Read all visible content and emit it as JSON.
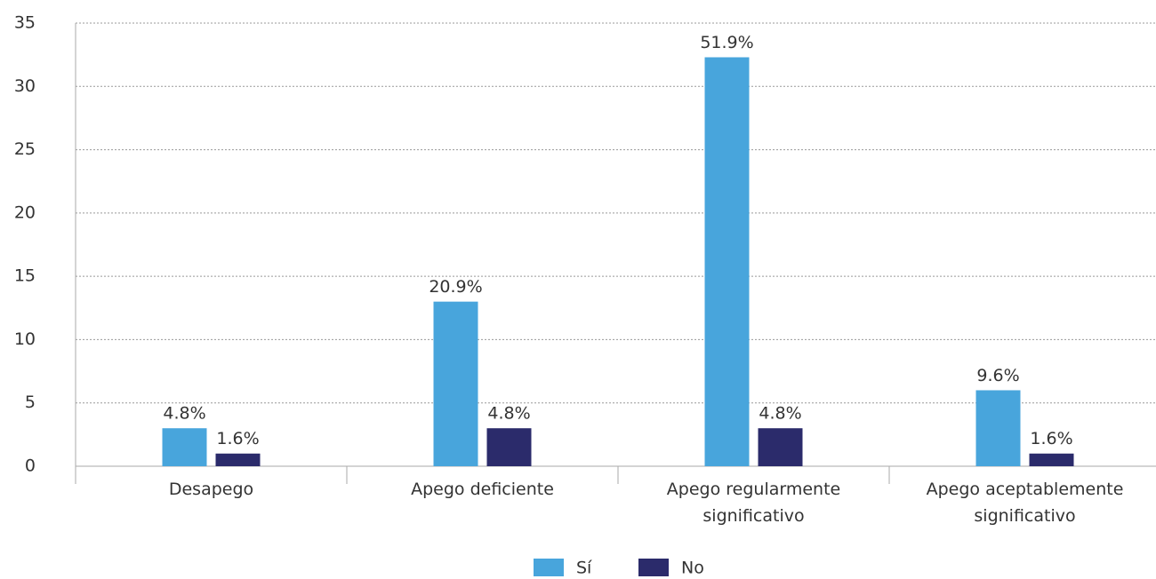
{
  "chart_data": {
    "type": "bar",
    "categories": [
      "Desapego",
      "Apego deficiente",
      "Apego regularmente significativo",
      "Apego aceptablemente significativo"
    ],
    "series": [
      {
        "name": "Sí",
        "color": "#48a5dc",
        "values": [
          3,
          13,
          32.3,
          6
        ],
        "value_labels": [
          "4.8%",
          "20.9%",
          "51.9%",
          "9.6%"
        ]
      },
      {
        "name": "No",
        "color": "#2b2b6b",
        "values": [
          1,
          3,
          3,
          1
        ],
        "value_labels": [
          "1.6%",
          "4.8%",
          "4.8%",
          "1.6%"
        ]
      }
    ],
    "ylim": [
      0,
      35
    ],
    "yticks": [
      0,
      5,
      10,
      15,
      20,
      25,
      30,
      35
    ],
    "grid": true,
    "legend": "bottom"
  }
}
